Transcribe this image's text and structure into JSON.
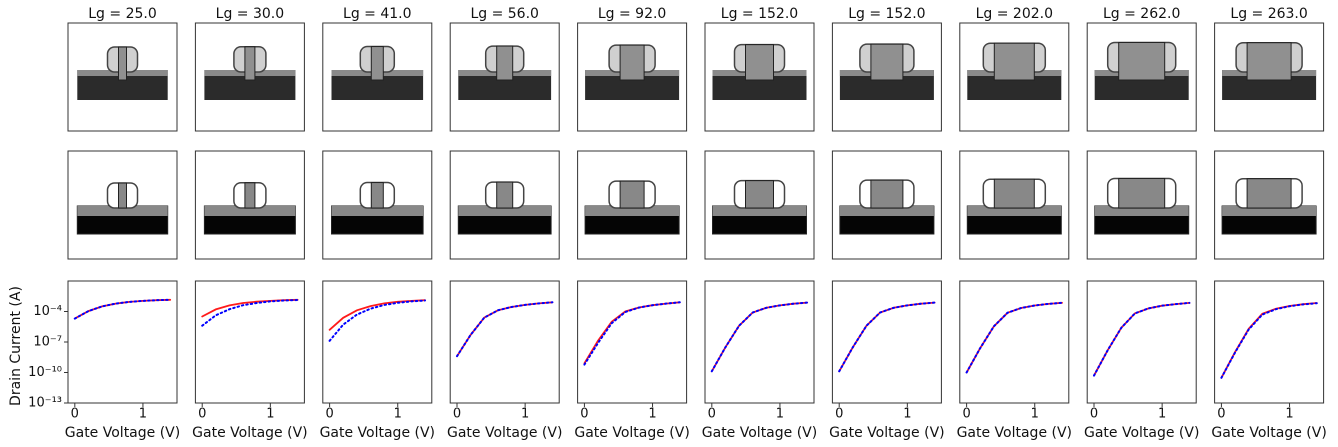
{
  "chart_data": [
    {
      "type": "line",
      "title": "Lg = 25.0",
      "xlabel": "Gate Voltage (V)",
      "ylabel": "Drain Current (A)",
      "log_y": true,
      "x": [
        0,
        0.2,
        0.4,
        0.6,
        0.8,
        1,
        1.2,
        1.4
      ],
      "xlim": [
        -0.1,
        1.5
      ],
      "xticks": [
        0,
        1
      ],
      "ylim": [
        1e-13,
        0.1
      ],
      "yticks": [
        {
          "value": 0.0001,
          "label": "10⁻⁴"
        },
        {
          "value": 1e-07,
          "label": "10⁻⁷"
        },
        {
          "value": 1e-10,
          "label": "10⁻¹⁰"
        },
        {
          "value": 1e-13,
          "label": "10⁻¹³"
        }
      ],
      "series": [
        {
          "color": "#ff1a1a",
          "style": "solid",
          "values": [
            2e-05,
            0.00011,
            0.00032,
            0.0006,
            0.00087,
            0.0011,
            0.0013,
            0.0014
          ]
        },
        {
          "color": "#0000ff",
          "style": "dotted",
          "values": [
            2e-05,
            0.00011,
            0.00032,
            0.0006,
            0.00087,
            0.0011,
            0.0013,
            0.0014
          ]
        }
      ]
    },
    {
      "type": "line",
      "title": "Lg = 30.0",
      "xlabel": "Gate Voltage (V)",
      "log_y": true,
      "x": [
        0,
        0.2,
        0.4,
        0.6,
        0.8,
        1,
        1.2,
        1.4
      ],
      "xlim": [
        -0.1,
        1.5
      ],
      "xticks": [
        0,
        1
      ],
      "ylim": [
        1e-13,
        0.1
      ],
      "series": [
        {
          "color": "#ff1a1a",
          "style": "solid",
          "values": [
            3.2e-05,
            0.00016,
            0.0004,
            0.00068,
            0.00093,
            0.0011,
            0.0013,
            0.0014
          ]
        },
        {
          "color": "#0000ff",
          "style": "dotted",
          "values": [
            4e-06,
            4.2e-05,
            0.00017,
            0.00042,
            0.00069,
            0.00098,
            0.0012,
            0.00135
          ]
        }
      ]
    },
    {
      "type": "line",
      "title": "Lg = 41.0",
      "xlabel": "Gate Voltage (V)",
      "log_y": true,
      "x": [
        0,
        0.2,
        0.4,
        0.6,
        0.8,
        1,
        1.2,
        1.4
      ],
      "xlim": [
        -0.1,
        1.5
      ],
      "xticks": [
        0,
        1
      ],
      "ylim": [
        1e-13,
        0.1
      ],
      "series": [
        {
          "color": "#ff1a1a",
          "style": "solid",
          "values": [
            1.6e-06,
            2.4e-05,
            0.00013,
            0.00034,
            0.00062,
            0.00089,
            0.0011,
            0.0013
          ]
        },
        {
          "color": "#0000ff",
          "style": "dotted",
          "values": [
            1.3e-07,
            5.1e-06,
            4.9e-05,
            0.00019,
            0.00044,
            0.00072,
            0.00098,
            0.0012
          ]
        }
      ]
    },
    {
      "type": "line",
      "title": "Lg = 56.0",
      "xlabel": "Gate Voltage (V)",
      "log_y": true,
      "x": [
        0,
        0.2,
        0.4,
        0.6,
        0.8,
        1,
        1.2,
        1.4
      ],
      "xlim": [
        -0.1,
        1.5
      ],
      "xticks": [
        0,
        1
      ],
      "ylim": [
        1e-13,
        0.1
      ],
      "series": [
        {
          "color": "#ff1a1a",
          "style": "solid",
          "values": [
            4e-09,
            5e-07,
            2.5e-05,
            0.00013,
            0.00028,
            0.00045,
            0.00063,
            0.0008
          ]
        },
        {
          "color": "#0000ff",
          "style": "dotted",
          "values": [
            4e-09,
            5e-07,
            2.5e-05,
            0.00013,
            0.00028,
            0.00045,
            0.00063,
            0.0008
          ]
        }
      ]
    },
    {
      "type": "line",
      "title": "Lg = 92.0",
      "xlabel": "Gate Voltage (V)",
      "log_y": true,
      "x": [
        0,
        0.2,
        0.4,
        0.6,
        0.8,
        1,
        1.2,
        1.4
      ],
      "xlim": [
        -0.1,
        1.5
      ],
      "xticks": [
        0,
        1
      ],
      "ylim": [
        1e-13,
        0.1
      ],
      "series": [
        {
          "color": "#ff1a1a",
          "style": "solid",
          "values": [
            8e-10,
            1.3e-07,
            1e-05,
            0.0001,
            0.00025,
            0.00042,
            0.0006,
            0.0008
          ]
        },
        {
          "color": "#0000ff",
          "style": "dotted",
          "values": [
            6e-10,
            8e-08,
            7e-06,
            9e-05,
            0.00024,
            0.00042,
            0.0006,
            0.0008
          ]
        }
      ]
    },
    {
      "type": "line",
      "title": "Lg = 152.0",
      "xlabel": "Gate Voltage (V)",
      "log_y": true,
      "x": [
        0,
        0.2,
        0.4,
        0.6,
        0.8,
        1,
        1.2,
        1.4
      ],
      "xlim": [
        -0.1,
        1.5
      ],
      "xticks": [
        0,
        1
      ],
      "ylim": [
        1e-13,
        0.1
      ],
      "series": [
        {
          "color": "#ff1a1a",
          "style": "solid",
          "values": [
            1.3e-10,
            3e-08,
            4e-06,
            8e-05,
            0.00023,
            0.0004,
            0.00058,
            0.00075
          ]
        },
        {
          "color": "#0000ff",
          "style": "dotted",
          "values": [
            1.3e-10,
            3e-08,
            4e-06,
            8e-05,
            0.00023,
            0.0004,
            0.00058,
            0.00075
          ]
        }
      ]
    },
    {
      "type": "line",
      "title": "Lg = 152.0",
      "xlabel": "Gate Voltage (V)",
      "log_y": true,
      "x": [
        0,
        0.2,
        0.4,
        0.6,
        0.8,
        1,
        1.2,
        1.4
      ],
      "xlim": [
        -0.1,
        1.5
      ],
      "xticks": [
        0,
        1
      ],
      "ylim": [
        1e-13,
        0.1
      ],
      "series": [
        {
          "color": "#ff1a1a",
          "style": "solid",
          "values": [
            1.3e-10,
            3e-08,
            4e-06,
            8e-05,
            0.00023,
            0.0004,
            0.00058,
            0.00075
          ]
        },
        {
          "color": "#0000ff",
          "style": "dotted",
          "values": [
            1.3e-10,
            3e-08,
            4e-06,
            8e-05,
            0.00023,
            0.0004,
            0.00058,
            0.00075
          ]
        }
      ]
    },
    {
      "type": "line",
      "title": "Lg = 202.0",
      "xlabel": "Gate Voltage (V)",
      "log_y": true,
      "x": [
        0,
        0.2,
        0.4,
        0.6,
        0.8,
        1,
        1.2,
        1.4
      ],
      "xlim": [
        -0.1,
        1.5
      ],
      "xticks": [
        0,
        1
      ],
      "ylim": [
        1e-13,
        0.1
      ],
      "series": [
        {
          "color": "#ff1a1a",
          "style": "solid",
          "values": [
            1e-10,
            2.5e-08,
            3.5e-06,
            7.5e-05,
            0.00022,
            0.00039,
            0.00056,
            0.00072
          ]
        },
        {
          "color": "#0000ff",
          "style": "dotted",
          "values": [
            1e-10,
            2.5e-08,
            3.5e-06,
            7.5e-05,
            0.00022,
            0.00039,
            0.00056,
            0.00072
          ]
        }
      ]
    },
    {
      "type": "line",
      "title": "Lg = 262.0",
      "xlabel": "Gate Voltage (V)",
      "log_y": true,
      "x": [
        0,
        0.2,
        0.4,
        0.6,
        0.8,
        1,
        1.2,
        1.4
      ],
      "xlim": [
        -0.1,
        1.5
      ],
      "xticks": [
        0,
        1
      ],
      "ylim": [
        1e-13,
        0.1
      ],
      "series": [
        {
          "color": "#ff1a1a",
          "style": "solid",
          "values": [
            5e-11,
            1.5e-08,
            2.5e-06,
            6.5e-05,
            0.0002,
            0.00037,
            0.00054,
            0.0007
          ]
        },
        {
          "color": "#0000ff",
          "style": "dotted",
          "values": [
            5e-11,
            1.5e-08,
            2.5e-06,
            6.5e-05,
            0.0002,
            0.00037,
            0.00054,
            0.0007
          ]
        }
      ]
    },
    {
      "type": "line",
      "title": "Lg = 263.0",
      "xlabel": "Gate Voltage (V)",
      "log_y": true,
      "x": [
        0,
        0.2,
        0.4,
        0.6,
        0.8,
        1,
        1.2,
        1.4
      ],
      "xlim": [
        -0.1,
        1.5
      ],
      "xticks": [
        0,
        1
      ],
      "ylim": [
        1e-13,
        0.1
      ],
      "series": [
        {
          "color": "#ff1a1a",
          "style": "solid",
          "values": [
            3e-11,
            1e-08,
            2e-06,
            6e-05,
            0.00019,
            0.00035,
            0.00052,
            0.00068
          ]
        },
        {
          "color": "#0000ff",
          "style": "dotted",
          "values": [
            3e-11,
            9e-09,
            1.7e-06,
            5e-05,
            0.00017,
            0.00033,
            0.0005,
            0.00066
          ]
        }
      ]
    }
  ]
}
